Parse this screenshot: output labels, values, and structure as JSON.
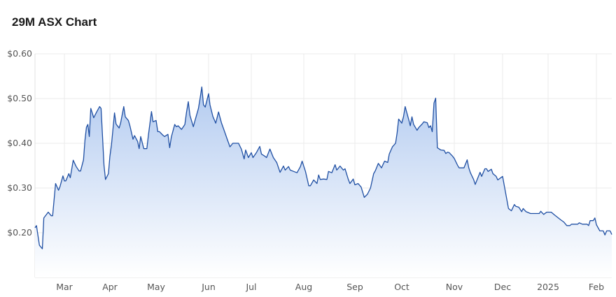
{
  "header": {
    "title": "29M ASX Chart"
  },
  "chart_data": {
    "type": "area",
    "title": "29M ASX Chart",
    "xlabel": "",
    "ylabel": "",
    "ylim": [
      0.1,
      0.6
    ],
    "xlim": [
      "2024-02-10",
      "2025-02-10"
    ],
    "grid": true,
    "colors": {
      "line": "#1f4fa3",
      "fill_top": "#b3cbf0",
      "fill_bottom": "#ffffff",
      "grid": "#ebebeb"
    },
    "y_ticks": [
      {
        "value": 0.6,
        "label": "$0.60"
      },
      {
        "value": 0.5,
        "label": "$0.50"
      },
      {
        "value": 0.4,
        "label": "$0.40"
      },
      {
        "value": 0.3,
        "label": "$0.30"
      },
      {
        "value": 0.2,
        "label": "$0.20"
      }
    ],
    "x_ticks": [
      {
        "date": "2024-03-01",
        "label": "Mar"
      },
      {
        "date": "2024-04-01",
        "label": "Apr"
      },
      {
        "date": "2024-05-01",
        "label": "May"
      },
      {
        "date": "2024-06-01",
        "label": "Jun"
      },
      {
        "date": "2024-07-01",
        "label": "Jul"
      },
      {
        "date": "2024-08-01",
        "label": "Aug"
      },
      {
        "date": "2024-09-01",
        "label": "Sep"
      },
      {
        "date": "2024-10-01",
        "label": "Oct"
      },
      {
        "date": "2024-11-01",
        "label": "Nov"
      },
      {
        "date": "2024-12-01",
        "label": "Dec"
      },
      {
        "date": "2025-01-01",
        "label": "2025"
      },
      {
        "date": "2025-02-01",
        "label": "Feb"
      }
    ],
    "points": [
      [
        "2024-02-10",
        0.211
      ],
      [
        "2024-02-11",
        0.216
      ],
      [
        "2024-02-13",
        0.172
      ],
      [
        "2024-02-15",
        0.164
      ],
      [
        "2024-02-16",
        0.233
      ],
      [
        "2024-02-19",
        0.246
      ],
      [
        "2024-02-21",
        0.238
      ],
      [
        "2024-02-22",
        0.238
      ],
      [
        "2024-02-24",
        0.31
      ],
      [
        "2024-02-26",
        0.295
      ],
      [
        "2024-02-27",
        0.303
      ],
      [
        "2024-02-29",
        0.327
      ],
      [
        "2024-03-01",
        0.316
      ],
      [
        "2024-03-02",
        0.316
      ],
      [
        "2024-03-04",
        0.332
      ],
      [
        "2024-03-05",
        0.323
      ],
      [
        "2024-03-07",
        0.362
      ],
      [
        "2024-03-09",
        0.348
      ],
      [
        "2024-03-11",
        0.338
      ],
      [
        "2024-03-12",
        0.338
      ],
      [
        "2024-03-14",
        0.363
      ],
      [
        "2024-03-15",
        0.407
      ],
      [
        "2024-03-16",
        0.436
      ],
      [
        "2024-03-17",
        0.442
      ],
      [
        "2024-03-18",
        0.415
      ],
      [
        "2024-03-19",
        0.478
      ],
      [
        "2024-03-21",
        0.457
      ],
      [
        "2024-03-23",
        0.47
      ],
      [
        "2024-03-25",
        0.482
      ],
      [
        "2024-03-26",
        0.478
      ],
      [
        "2024-03-28",
        0.35
      ],
      [
        "2024-03-29",
        0.319
      ],
      [
        "2024-03-31",
        0.332
      ],
      [
        "2024-04-01",
        0.371
      ],
      [
        "2024-04-02",
        0.396
      ],
      [
        "2024-04-04",
        0.468
      ],
      [
        "2024-04-05",
        0.443
      ],
      [
        "2024-04-07",
        0.434
      ],
      [
        "2024-04-08",
        0.446
      ],
      [
        "2024-04-10",
        0.482
      ],
      [
        "2024-04-11",
        0.459
      ],
      [
        "2024-04-13",
        0.451
      ],
      [
        "2024-04-14",
        0.439
      ],
      [
        "2024-04-16",
        0.409
      ],
      [
        "2024-04-17",
        0.417
      ],
      [
        "2024-04-19",
        0.404
      ],
      [
        "2024-04-20",
        0.388
      ],
      [
        "2024-04-21",
        0.415
      ],
      [
        "2024-04-23",
        0.388
      ],
      [
        "2024-04-25",
        0.388
      ],
      [
        "2024-04-26",
        0.418
      ],
      [
        "2024-04-28",
        0.471
      ],
      [
        "2024-04-29",
        0.448
      ],
      [
        "2024-05-01",
        0.451
      ],
      [
        "2024-05-02",
        0.426
      ],
      [
        "2024-05-03",
        0.426
      ],
      [
        "2024-05-05",
        0.418
      ],
      [
        "2024-05-06",
        0.415
      ],
      [
        "2024-05-08",
        0.42
      ],
      [
        "2024-05-09",
        0.39
      ],
      [
        "2024-05-10",
        0.414
      ],
      [
        "2024-05-12",
        0.442
      ],
      [
        "2024-05-13",
        0.437
      ],
      [
        "2024-05-14",
        0.439
      ],
      [
        "2024-05-16",
        0.431
      ],
      [
        "2024-05-18",
        0.442
      ],
      [
        "2024-05-19",
        0.47
      ],
      [
        "2024-05-20",
        0.493
      ],
      [
        "2024-05-21",
        0.462
      ],
      [
        "2024-05-23",
        0.437
      ],
      [
        "2024-05-24",
        0.451
      ],
      [
        "2024-05-26",
        0.478
      ],
      [
        "2024-05-27",
        0.501
      ],
      [
        "2024-05-28",
        0.526
      ],
      [
        "2024-05-29",
        0.486
      ],
      [
        "2024-05-30",
        0.481
      ],
      [
        "2024-06-01",
        0.511
      ],
      [
        "2024-06-02",
        0.486
      ],
      [
        "2024-06-04",
        0.46
      ],
      [
        "2024-06-06",
        0.445
      ],
      [
        "2024-06-08",
        0.47
      ],
      [
        "2024-06-10",
        0.446
      ],
      [
        "2024-06-12",
        0.428
      ],
      [
        "2024-06-14",
        0.41
      ],
      [
        "2024-06-16",
        0.392
      ],
      [
        "2024-06-18",
        0.4
      ],
      [
        "2024-06-22",
        0.4
      ],
      [
        "2024-06-24",
        0.387
      ],
      [
        "2024-06-26",
        0.365
      ],
      [
        "2024-06-27",
        0.385
      ],
      [
        "2024-06-29",
        0.368
      ],
      [
        "2024-07-01",
        0.379
      ],
      [
        "2024-07-02",
        0.368
      ],
      [
        "2024-07-04",
        0.379
      ],
      [
        "2024-07-06",
        0.393
      ],
      [
        "2024-07-07",
        0.376
      ],
      [
        "2024-07-09",
        0.371
      ],
      [
        "2024-07-10",
        0.368
      ],
      [
        "2024-07-12",
        0.387
      ],
      [
        "2024-07-14",
        0.368
      ],
      [
        "2024-07-16",
        0.357
      ],
      [
        "2024-07-18",
        0.335
      ],
      [
        "2024-07-20",
        0.349
      ],
      [
        "2024-07-21",
        0.34
      ],
      [
        "2024-07-23",
        0.348
      ],
      [
        "2024-07-24",
        0.34
      ],
      [
        "2024-07-26",
        0.337
      ],
      [
        "2024-07-28",
        0.334
      ],
      [
        "2024-07-30",
        0.348
      ],
      [
        "2024-07-31",
        0.36
      ],
      [
        "2024-08-02",
        0.337
      ],
      [
        "2024-08-04",
        0.305
      ],
      [
        "2024-08-05",
        0.305
      ],
      [
        "2024-08-07",
        0.318
      ],
      [
        "2024-08-09",
        0.31
      ],
      [
        "2024-08-10",
        0.329
      ],
      [
        "2024-08-11",
        0.319
      ],
      [
        "2024-08-13",
        0.32
      ],
      [
        "2024-08-15",
        0.319
      ],
      [
        "2024-08-16",
        0.337
      ],
      [
        "2024-08-18",
        0.334
      ],
      [
        "2024-08-20",
        0.352
      ],
      [
        "2024-08-21",
        0.34
      ],
      [
        "2024-08-23",
        0.349
      ],
      [
        "2024-08-25",
        0.34
      ],
      [
        "2024-08-26",
        0.343
      ],
      [
        "2024-08-28",
        0.319
      ],
      [
        "2024-08-29",
        0.31
      ],
      [
        "2024-08-31",
        0.32
      ],
      [
        "2024-09-01",
        0.307
      ],
      [
        "2024-09-03",
        0.31
      ],
      [
        "2024-09-05",
        0.302
      ],
      [
        "2024-09-07",
        0.279
      ],
      [
        "2024-09-09",
        0.286
      ],
      [
        "2024-09-11",
        0.3
      ],
      [
        "2024-09-13",
        0.332
      ],
      [
        "2024-09-14",
        0.338
      ],
      [
        "2024-09-16",
        0.355
      ],
      [
        "2024-09-18",
        0.345
      ],
      [
        "2024-09-20",
        0.36
      ],
      [
        "2024-09-22",
        0.357
      ],
      [
        "2024-09-23",
        0.376
      ],
      [
        "2024-09-25",
        0.392
      ],
      [
        "2024-09-27",
        0.4
      ],
      [
        "2024-09-28",
        0.423
      ],
      [
        "2024-09-29",
        0.454
      ],
      [
        "2024-10-01",
        0.445
      ],
      [
        "2024-10-02",
        0.459
      ],
      [
        "2024-10-03",
        0.482
      ],
      [
        "2024-10-05",
        0.454
      ],
      [
        "2024-10-06",
        0.439
      ],
      [
        "2024-10-07",
        0.459
      ],
      [
        "2024-10-08",
        0.442
      ],
      [
        "2024-10-10",
        0.429
      ],
      [
        "2024-10-11",
        0.435
      ],
      [
        "2024-10-13",
        0.443
      ],
      [
        "2024-10-14",
        0.448
      ],
      [
        "2024-10-16",
        0.446
      ],
      [
        "2024-10-17",
        0.435
      ],
      [
        "2024-10-18",
        0.439
      ],
      [
        "2024-10-19",
        0.426
      ],
      [
        "2024-10-20",
        0.49
      ],
      [
        "2024-10-21",
        0.501
      ],
      [
        "2024-10-22",
        0.39
      ],
      [
        "2024-10-24",
        0.385
      ],
      [
        "2024-10-26",
        0.384
      ],
      [
        "2024-10-27",
        0.377
      ],
      [
        "2024-10-28",
        0.38
      ],
      [
        "2024-10-29",
        0.379
      ],
      [
        "2024-10-31",
        0.371
      ],
      [
        "2024-11-01",
        0.366
      ],
      [
        "2024-11-03",
        0.351
      ],
      [
        "2024-11-04",
        0.345
      ],
      [
        "2024-11-07",
        0.345
      ],
      [
        "2024-11-09",
        0.363
      ],
      [
        "2024-11-10",
        0.345
      ],
      [
        "2024-11-11",
        0.334
      ],
      [
        "2024-11-13",
        0.319
      ],
      [
        "2024-11-14",
        0.308
      ],
      [
        "2024-11-17",
        0.335
      ],
      [
        "2024-11-18",
        0.326
      ],
      [
        "2024-11-20",
        0.343
      ],
      [
        "2024-11-21",
        0.343
      ],
      [
        "2024-11-22",
        0.337
      ],
      [
        "2024-11-24",
        0.342
      ],
      [
        "2024-11-25",
        0.332
      ],
      [
        "2024-11-27",
        0.326
      ],
      [
        "2024-11-28",
        0.318
      ],
      [
        "2024-12-01",
        0.326
      ],
      [
        "2024-12-05",
        0.254
      ],
      [
        "2024-12-07",
        0.249
      ],
      [
        "2024-12-09",
        0.263
      ],
      [
        "2024-12-10",
        0.259
      ],
      [
        "2024-12-12",
        0.257
      ],
      [
        "2024-12-14",
        0.247
      ],
      [
        "2024-12-15",
        0.254
      ],
      [
        "2024-12-17",
        0.247
      ],
      [
        "2024-12-20",
        0.243
      ],
      [
        "2024-12-26",
        0.243
      ],
      [
        "2024-12-27",
        0.248
      ],
      [
        "2024-12-29",
        0.241
      ],
      [
        "2024-12-31",
        0.246
      ],
      [
        "2025-01-03",
        0.246
      ],
      [
        "2025-01-05",
        0.24
      ],
      [
        "2025-01-09",
        0.229
      ],
      [
        "2025-01-11",
        0.224
      ],
      [
        "2025-01-13",
        0.216
      ],
      [
        "2025-01-15",
        0.216
      ],
      [
        "2025-01-16",
        0.219
      ],
      [
        "2025-01-20",
        0.219
      ],
      [
        "2025-01-21",
        0.222
      ],
      [
        "2025-01-23",
        0.219
      ],
      [
        "2025-01-26",
        0.219
      ],
      [
        "2025-01-27",
        0.216
      ],
      [
        "2025-01-28",
        0.227
      ],
      [
        "2025-01-30",
        0.227
      ],
      [
        "2025-01-31",
        0.233
      ],
      [
        "2025-02-01",
        0.218
      ],
      [
        "2025-02-03",
        0.204
      ],
      [
        "2025-02-05",
        0.204
      ],
      [
        "2025-02-06",
        0.195
      ],
      [
        "2025-02-07",
        0.204
      ],
      [
        "2025-02-09",
        0.204
      ],
      [
        "2025-02-10",
        0.196
      ]
    ]
  }
}
